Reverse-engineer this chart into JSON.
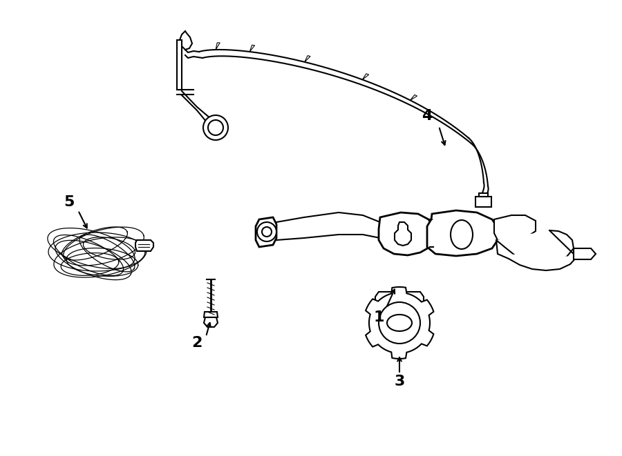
{
  "bg_color": "#ffffff",
  "line_color": "#000000",
  "lw": 1.5,
  "figsize": [
    9.0,
    6.61
  ],
  "dpi": 100
}
